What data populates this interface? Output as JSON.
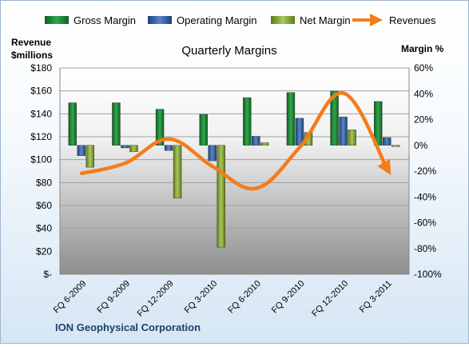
{
  "chart_data": {
    "type": "bar",
    "title": "Quarterly Margins",
    "company": "ION Geophysical Corporation",
    "categories": [
      "FQ 6-2009",
      "FQ 9-2009",
      "FQ 12-2009",
      "FQ 3-2010",
      "FQ 6-2010",
      "FQ 9-2010",
      "FQ 12-2010",
      "FQ 3-2011"
    ],
    "left_axis": {
      "label_line1": "Revenue",
      "label_line2": "$millions",
      "range": [
        0,
        180
      ],
      "ticks": [
        0,
        20,
        40,
        60,
        80,
        100,
        120,
        140,
        160,
        180
      ],
      "tick_labels": [
        "$-",
        "$20",
        "$40",
        "$60",
        "$80",
        "$100",
        "$120",
        "$140",
        "$160",
        "$180"
      ]
    },
    "right_axis": {
      "label": "Margin %",
      "range": [
        -100,
        60
      ],
      "ticks": [
        -100,
        -80,
        -60,
        -40,
        -20,
        0,
        20,
        40,
        60
      ],
      "tick_labels": [
        "-100%",
        "-80%",
        "-60%",
        "-40%",
        "-20%",
        "0%",
        "20%",
        "40%",
        "60%"
      ]
    },
    "series": [
      {
        "name": "Gross Margin",
        "kind": "bar",
        "axis": "right",
        "color": "#1e8c3a",
        "values": [
          33,
          33,
          28,
          24,
          37,
          41,
          42,
          34
        ]
      },
      {
        "name": "Operating Margin",
        "kind": "bar",
        "axis": "right",
        "color": "#3a66a8",
        "values": [
          -8,
          -2,
          -4,
          -12,
          7,
          21,
          22,
          6
        ]
      },
      {
        "name": "Net Margin",
        "kind": "bar",
        "axis": "right",
        "color": "#8fb33e",
        "values": [
          -17,
          -5,
          -41,
          -79,
          2,
          10,
          12,
          -1
        ]
      },
      {
        "name": "Revenues",
        "kind": "line",
        "axis": "left",
        "color": "#f27d1a",
        "values": [
          88,
          97,
          118,
          94,
          75,
          111,
          158,
          92
        ]
      }
    ],
    "grid": true,
    "legend_position": "top"
  }
}
